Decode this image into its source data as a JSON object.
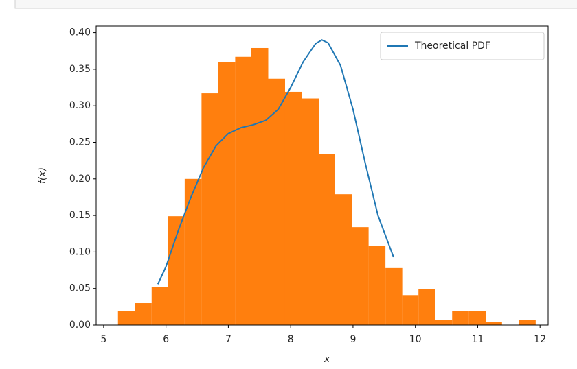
{
  "chart_data": {
    "type": "histogram",
    "xlabel": "x",
    "ylabel": "f(x)",
    "bins": [
      5.23,
      5.5,
      5.77,
      6.03,
      6.3,
      6.57,
      6.84,
      7.11,
      7.37,
      7.64,
      7.91,
      8.18,
      8.45,
      8.71,
      8.98,
      9.25,
      9.52,
      9.79,
      10.05,
      10.32,
      10.59,
      10.86,
      11.13,
      11.39,
      11.66,
      11.93
    ],
    "values": [
      0.019,
      0.03,
      0.052,
      0.149,
      0.2,
      0.317,
      0.36,
      0.367,
      0.379,
      0.337,
      0.319,
      0.31,
      0.234,
      0.179,
      0.134,
      0.108,
      0.078,
      0.041,
      0.049,
      0.007,
      0.019,
      0.019,
      0.004,
      0,
      0.007
    ],
    "color": "#ff7f0e",
    "lines": [
      {
        "name": "Theoretical PDF",
        "color": "#1f77b4",
        "x": [
          5.87,
          6.0,
          6.2,
          6.4,
          6.6,
          6.8,
          7.0,
          7.2,
          7.4,
          7.6,
          7.8,
          8.0,
          8.2,
          8.4,
          8.5,
          8.6,
          8.8,
          9.0,
          9.2,
          9.4,
          9.65
        ],
        "values": [
          0.056,
          0.08,
          0.13,
          0.175,
          0.215,
          0.245,
          0.262,
          0.27,
          0.274,
          0.28,
          0.295,
          0.325,
          0.36,
          0.385,
          0.39,
          0.386,
          0.355,
          0.295,
          0.22,
          0.15,
          0.093
        ]
      }
    ],
    "legend": "upper right",
    "xlim": [
      4.88,
      12.13
    ],
    "ylim": [
      0,
      0.409
    ],
    "xticks": [
      5,
      6,
      7,
      8,
      9,
      10,
      11,
      12
    ],
    "yticks": [
      {
        "value": 0,
        "label": "0.00"
      },
      {
        "value": 0.05,
        "label": "0.05"
      },
      {
        "value": 0.1,
        "label": "0.10"
      },
      {
        "value": 0.15,
        "label": "0.15"
      },
      {
        "value": 0.2,
        "label": "0.20"
      },
      {
        "value": 0.25,
        "label": "0.25"
      },
      {
        "value": 0.3,
        "label": "0.30"
      },
      {
        "value": 0.35,
        "label": "0.35"
      },
      {
        "value": 0.4,
        "label": "0.40"
      }
    ]
  }
}
